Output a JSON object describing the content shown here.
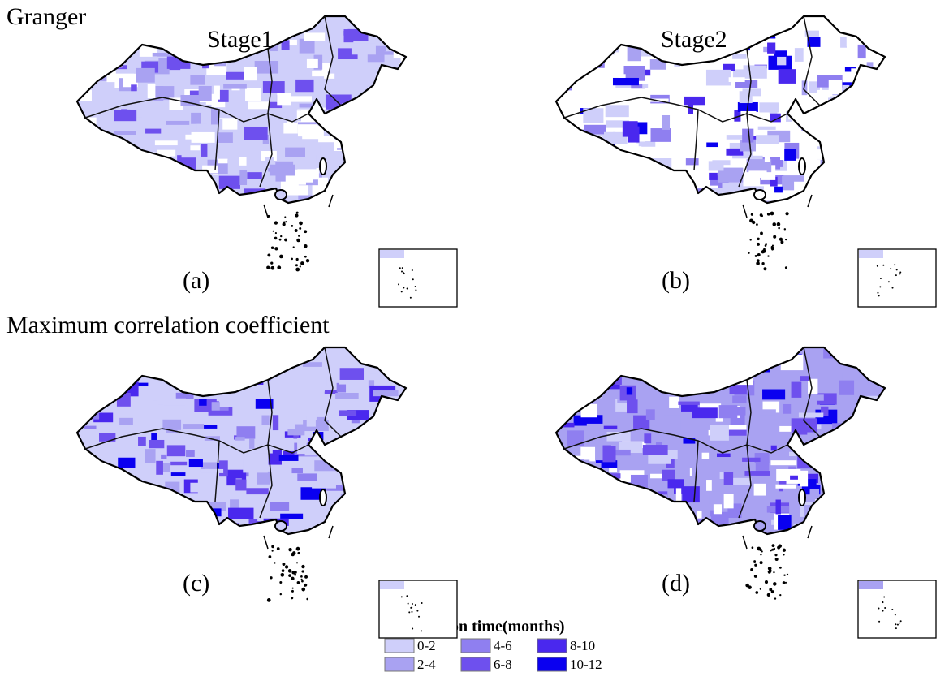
{
  "section_titles": [
    "Granger",
    "Maximum correlation coefficient"
  ],
  "column_titles": [
    "Stage1",
    "Stage2"
  ],
  "panels": [
    {
      "label": "(a)"
    },
    {
      "label": "(b)"
    },
    {
      "label": "(c)"
    },
    {
      "label": "(d)"
    }
  ],
  "legend": {
    "title": "propagation time(months)",
    "items": [
      {
        "label": "0-2",
        "color": "#cfcffa"
      },
      {
        "label": "2-4",
        "color": "#a9a2f2"
      },
      {
        "label": "4-6",
        "color": "#8f7ff0"
      },
      {
        "label": "6-8",
        "color": "#6e50ee"
      },
      {
        "label": "8-10",
        "color": "#4a28ee"
      },
      {
        "label": "10-12",
        "color": "#0a00f0"
      }
    ]
  }
}
